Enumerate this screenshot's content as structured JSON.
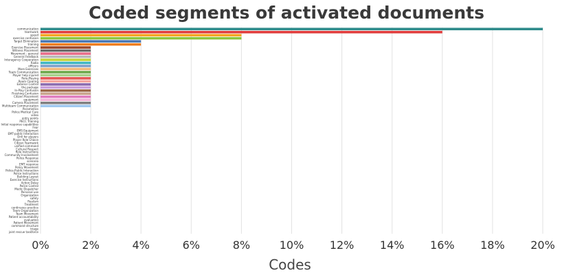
{
  "chart_data": {
    "type": "bar",
    "orientation": "horizontal",
    "title": "Coded segments of activated documents",
    "xlabel": "Codes",
    "ylabel": "",
    "xlim": [
      0,
      20
    ],
    "x_ticks": [
      "0%",
      "2%",
      "4%",
      "6%",
      "8%",
      "10%",
      "12%",
      "14%",
      "16%",
      "18%",
      "20%"
    ],
    "grid": "vertical",
    "legend": "none",
    "categories": [
      "communication",
      "teamwork",
      "speed",
      "exercise confusion",
      "Target Elimination",
      "training",
      "Exercise Placement",
      "Witness Placement",
      "Movement - general",
      "General Feedback",
      "Interagency Cooperation",
      "Radio",
      "officers",
      "More Exercises",
      "Team Communication",
      "Player help injured",
      "Role-Playing",
      "Room Clearing",
      "Exterior Control",
      "the package",
      "In-Play Confusion",
      "Finishing Confusion",
      "Citizen Placement",
      "equipment",
      "Camera Placement",
      "Multiteam Communication",
      "Paramedics",
      "Police Medical Care",
      "video",
      "entry points",
      "PECC Training",
      "Initial response capabilities",
      "Fear",
      "EMS Equipment",
      "EMT-public Interaction",
      "Drill for players",
      "Player Role Choice",
      "Citizen Teamwork",
      "unified command",
      "Cultural Respect",
      "Role Instructions",
      "Community Involvement",
      "Police Response",
      "scenario",
      "EMT response",
      "Policy Movement",
      "Police-Public Interaction",
      "Police Instructions",
      "Building Layout",
      "Exercise Instructions",
      "Action Delay",
      "Police Control",
      "Medic Dispatcher",
      "Personal use",
      "Organization",
      "safety",
      "Realism",
      "Treatment",
      "continuous practice",
      "Team Organization",
      "Team Movement",
      "Patient accountability",
      "evaluation",
      "Patient Movement",
      "command structure",
      "triage",
      "joint rescue taskforce"
    ],
    "values": [
      20,
      16,
      8,
      8,
      4,
      4,
      2,
      2,
      2,
      2,
      2,
      2,
      2,
      2,
      2,
      2,
      2,
      2,
      2,
      2,
      2,
      2,
      2,
      2,
      2,
      2,
      0,
      0,
      0,
      0,
      0,
      0,
      0,
      0,
      0,
      0,
      0,
      0,
      0,
      0,
      0,
      0,
      0,
      0,
      0,
      0,
      0,
      0,
      0,
      0,
      0,
      0,
      0,
      0,
      0,
      0,
      0,
      0,
      0,
      0,
      0,
      0,
      0,
      0,
      0,
      0,
      0
    ],
    "colors": [
      "#2e8b8b",
      "#e03c3c",
      "#f5a623",
      "#8cc63f",
      "#4a78b5",
      "#f07d1e",
      "#9c4a2e",
      "#6b6b6b",
      "#e86d8a",
      "#b8b8b8",
      "#c7d43a",
      "#3fb6c2",
      "#7fa0cc",
      "#f0b87a",
      "#6ca84a",
      "#a6d08a",
      "#e45756",
      "#f7a8a0",
      "#8c6cb0",
      "#c9a0dc",
      "#9e6a4a",
      "#c9a38c",
      "#e07dc0",
      "#f2b6d8",
      "#7f7f7f",
      "#a0c8f0"
    ]
  }
}
